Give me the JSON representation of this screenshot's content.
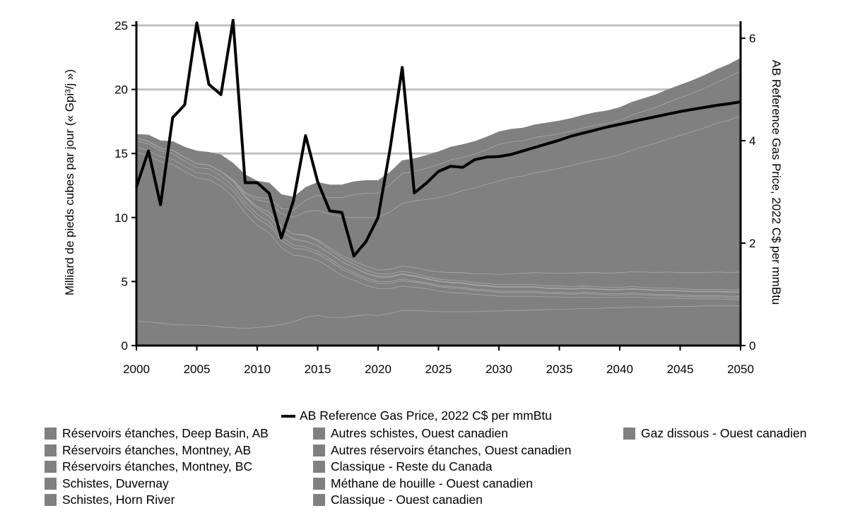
{
  "chart_data": {
    "type": "area",
    "x": [
      2000,
      2001,
      2002,
      2003,
      2004,
      2005,
      2006,
      2007,
      2008,
      2009,
      2010,
      2011,
      2012,
      2013,
      2014,
      2015,
      2016,
      2017,
      2018,
      2019,
      2020,
      2021,
      2022,
      2023,
      2024,
      2025,
      2026,
      2027,
      2028,
      2029,
      2030,
      2031,
      2032,
      2033,
      2034,
      2035,
      2036,
      2037,
      2038,
      2039,
      2040,
      2041,
      2042,
      2043,
      2044,
      2045,
      2046,
      2047,
      2048,
      2049,
      2050
    ],
    "xticks": [
      2000,
      2005,
      2010,
      2015,
      2020,
      2025,
      2030,
      2035,
      2040,
      2045,
      2050
    ],
    "ylabel": "Milliard de pieds cubes par jour (« Gpi³/j »)",
    "y2label": "AB Reference Gas Price, 2022 C$ per mmBtu",
    "ylim": [
      0,
      25
    ],
    "y2lim": [
      0,
      6.25
    ],
    "yticks": [
      0,
      5,
      10,
      15,
      20,
      25
    ],
    "y2ticks": [
      0,
      2,
      4,
      6
    ],
    "grid": "horizontal",
    "legend_position": "bottom",
    "fill_color": "#808080",
    "separator_color": "#a8a8a8",
    "line_color": "#000000",
    "area_series": [
      {
        "name": "Gaz dissous - Ouest canadien",
        "values": [
          1.9,
          1.85,
          1.75,
          1.65,
          1.6,
          1.6,
          1.55,
          1.45,
          1.4,
          1.35,
          1.4,
          1.5,
          1.65,
          1.85,
          2.2,
          2.35,
          2.2,
          2.15,
          2.3,
          2.4,
          2.35,
          2.5,
          2.75,
          2.75,
          2.7,
          2.65,
          2.65,
          2.65,
          2.65,
          2.7,
          2.7,
          2.75,
          2.75,
          2.8,
          2.8,
          2.85,
          2.85,
          2.9,
          2.9,
          2.95,
          2.95,
          3.0,
          3.0,
          3.0,
          3.05,
          3.05,
          3.05,
          3.1,
          3.1,
          3.1,
          3.1
        ]
      },
      {
        "name": "Classique - Ouest canadien",
        "values": [
          13.2,
          13.0,
          12.6,
          12.5,
          12.0,
          11.5,
          11.4,
          11.0,
          10.2,
          9.0,
          8.0,
          7.3,
          6.0,
          5.2,
          4.75,
          4.3,
          3.9,
          3.3,
          2.8,
          2.3,
          2.1,
          1.95,
          1.9,
          1.8,
          1.75,
          1.6,
          1.5,
          1.45,
          1.35,
          1.25,
          1.15,
          1.1,
          1.1,
          1.05,
          1.0,
          0.95,
          0.9,
          0.9,
          0.85,
          0.8,
          0.8,
          0.8,
          0.75,
          0.7,
          0.65,
          0.65,
          0.6,
          0.55,
          0.55,
          0.5,
          0.5
        ]
      },
      {
        "name": "Méthane de houille - Ouest canadien",
        "values": [
          0.4,
          0.4,
          0.4,
          0.4,
          0.4,
          0.4,
          0.45,
          0.45,
          0.5,
          0.55,
          0.55,
          0.55,
          0.55,
          0.55,
          0.55,
          0.5,
          0.5,
          0.5,
          0.45,
          0.45,
          0.4,
          0.4,
          0.4,
          0.4,
          0.35,
          0.35,
          0.35,
          0.35,
          0.3,
          0.3,
          0.3,
          0.3,
          0.3,
          0.3,
          0.25,
          0.25,
          0.25,
          0.25,
          0.25,
          0.2,
          0.2,
          0.2,
          0.2,
          0.2,
          0.2,
          0.15,
          0.15,
          0.15,
          0.15,
          0.15,
          0.15
        ]
      },
      {
        "name": "Classique - Reste du Canada",
        "values": [
          0.5,
          0.5,
          0.45,
          0.45,
          0.4,
          0.4,
          0.4,
          0.35,
          0.35,
          0.3,
          0.3,
          0.3,
          0.25,
          0.25,
          0.2,
          0.2,
          0.2,
          0.2,
          0.15,
          0.15,
          0.15,
          0.15,
          0.15,
          0.1,
          0.1,
          0.1,
          0.1,
          0.1,
          0.1,
          0.1,
          0.1,
          0.1,
          0.1,
          0.1,
          0.1,
          0.1,
          0.1,
          0.1,
          0.1,
          0.1,
          0.1,
          0.1,
          0.1,
          0.1,
          0.1,
          0.1,
          0.1,
          0.1,
          0.1,
          0.1,
          0.1
        ]
      },
      {
        "name": "Autres réservoirs étanches, Ouest canadien",
        "values": [
          0.2,
          0.2,
          0.2,
          0.25,
          0.3,
          0.3,
          0.3,
          0.35,
          0.4,
          0.4,
          0.45,
          0.45,
          0.45,
          0.45,
          0.45,
          0.45,
          0.4,
          0.4,
          0.4,
          0.35,
          0.35,
          0.35,
          0.35,
          0.35,
          0.3,
          0.3,
          0.3,
          0.3,
          0.3,
          0.3,
          0.3,
          0.3,
          0.3,
          0.3,
          0.3,
          0.3,
          0.3,
          0.3,
          0.3,
          0.3,
          0.3,
          0.3,
          0.3,
          0.3,
          0.3,
          0.3,
          0.3,
          0.3,
          0.3,
          0.3,
          0.3
        ]
      },
      {
        "name": "Autres schistes, Ouest canadien",
        "values": [
          0,
          0,
          0,
          0,
          0,
          0,
          0,
          0,
          0,
          0,
          0,
          0,
          0,
          0,
          0,
          0,
          0,
          0,
          0,
          0,
          0.05,
          0.05,
          0.05,
          0.05,
          0.05,
          0.05,
          0.05,
          0.05,
          0.05,
          0.05,
          0.05,
          0.05,
          0.05,
          0.05,
          0.05,
          0.05,
          0.05,
          0.05,
          0.05,
          0.05,
          0.05,
          0.05,
          0.05,
          0.05,
          0.05,
          0.05,
          0.05,
          0.05,
          0.05,
          0.05,
          0.05
        ]
      },
      {
        "name": "Schistes, Horn River",
        "values": [
          0,
          0,
          0,
          0,
          0,
          0,
          0,
          0,
          0,
          0.05,
          0.15,
          0.3,
          0.4,
          0.4,
          0.45,
          0.35,
          0.3,
          0.3,
          0.25,
          0.25,
          0.2,
          0.2,
          0.2,
          0.2,
          0.15,
          0.15,
          0.15,
          0.15,
          0.15,
          0.15,
          0.15,
          0.15,
          0.15,
          0.15,
          0.15,
          0.15,
          0.15,
          0.15,
          0.15,
          0.15,
          0.15,
          0.15,
          0.15,
          0.15,
          0.15,
          0.15,
          0.15,
          0.15,
          0.15,
          0.15,
          0.15
        ]
      },
      {
        "name": "Schistes, Duvernay",
        "values": [
          0,
          0,
          0,
          0,
          0,
          0,
          0,
          0,
          0,
          0,
          0,
          0,
          0,
          0,
          0.05,
          0.1,
          0.15,
          0.2,
          0.25,
          0.3,
          0.3,
          0.35,
          0.4,
          0.45,
          0.5,
          0.55,
          0.6,
          0.65,
          0.7,
          0.75,
          0.8,
          0.85,
          0.9,
          0.95,
          1.0,
          1.0,
          1.05,
          1.05,
          1.1,
          1.1,
          1.15,
          1.15,
          1.2,
          1.2,
          1.25,
          1.25,
          1.3,
          1.3,
          1.35,
          1.35,
          1.4
        ]
      },
      {
        "name": "Réservoirs étanches, Montney, BC",
        "values": [
          0,
          0,
          0,
          0,
          0,
          0,
          0,
          0,
          0.1,
          0.2,
          0.5,
          0.8,
          1.0,
          1.3,
          1.8,
          2.3,
          2.6,
          3.0,
          3.4,
          3.8,
          4.1,
          4.5,
          4.9,
          5.2,
          5.5,
          5.8,
          6.1,
          6.4,
          6.7,
          7.0,
          7.3,
          7.5,
          7.6,
          7.8,
          8.0,
          8.2,
          8.4,
          8.6,
          8.8,
          9.0,
          9.2,
          9.5,
          9.8,
          10.1,
          10.4,
          10.7,
          11.0,
          11.3,
          11.6,
          11.9,
          12.2
        ]
      },
      {
        "name": "Réservoirs étanches, Montney, AB",
        "values": [
          0,
          0,
          0,
          0,
          0,
          0,
          0,
          0,
          0,
          0.1,
          0.2,
          0.3,
          0.4,
          0.6,
          0.9,
          1.2,
          1.3,
          1.5,
          1.8,
          1.9,
          1.9,
          2.1,
          2.35,
          2.3,
          2.45,
          2.6,
          2.7,
          2.6,
          2.65,
          2.7,
          2.85,
          2.8,
          2.75,
          2.75,
          2.75,
          2.7,
          2.7,
          2.7,
          2.7,
          2.7,
          2.7,
          2.75,
          2.75,
          2.8,
          2.85,
          2.95,
          3.0,
          3.1,
          3.2,
          3.35,
          3.5
        ]
      },
      {
        "name": "Réservoirs étanches, Deep Basin, AB",
        "values": [
          0.3,
          0.5,
          0.6,
          0.7,
          0.8,
          1.0,
          1.0,
          1.3,
          1.3,
          1.4,
          1.3,
          1.2,
          1.1,
          1.0,
          1.0,
          1.0,
          1.0,
          1.0,
          1.0,
          1.0,
          1.0,
          1.0,
          1.0,
          1.0,
          1.0,
          1.0,
          1.0,
          1.0,
          1.0,
          1.0,
          1.0,
          1.0,
          1.0,
          1.0,
          1.0,
          1.0,
          1.0,
          1.0,
          1.0,
          1.0,
          1.0,
          1.0,
          1.0,
          1.0,
          1.0,
          1.0,
          1.0,
          1.0,
          1.0,
          1.0,
          1.0
        ]
      }
    ],
    "line_series": [
      {
        "name": "AB Reference Gas Price, 2022 C$ per mmBtu",
        "axis": "y2",
        "values": [
          3.1,
          3.8,
          2.75,
          4.45,
          4.7,
          6.3,
          5.1,
          4.9,
          6.35,
          3.18,
          3.18,
          2.97,
          2.1,
          2.83,
          4.1,
          3.2,
          2.63,
          2.6,
          1.75,
          2.03,
          2.5,
          3.85,
          5.43,
          2.98,
          3.17,
          3.4,
          3.5,
          3.48,
          3.63,
          3.68,
          3.69,
          3.73,
          3.8,
          3.87,
          3.94,
          4.01,
          4.09,
          4.15,
          4.21,
          4.27,
          4.32,
          4.37,
          4.42,
          4.47,
          4.52,
          4.57,
          4.61,
          4.65,
          4.69,
          4.72,
          4.76
        ]
      }
    ]
  },
  "legend": {
    "line_label": "AB Reference Gas Price, 2022 C$ per mmBtu",
    "col1": [
      "Réservoirs étanches, Deep Basin, AB",
      "Réservoirs étanches, Montney, AB",
      "Réservoirs étanches, Montney, BC",
      "Schistes, Duvernay",
      "Schistes, Horn River"
    ],
    "col2": [
      "Autres schistes, Ouest canadien",
      "Autres réservoirs étanches, Ouest canadien",
      "Classique - Reste du Canada",
      "Méthane de houille - Ouest canadien",
      "Classique - Ouest canadien"
    ],
    "col3": [
      "Gaz dissous - Ouest canadien"
    ]
  }
}
